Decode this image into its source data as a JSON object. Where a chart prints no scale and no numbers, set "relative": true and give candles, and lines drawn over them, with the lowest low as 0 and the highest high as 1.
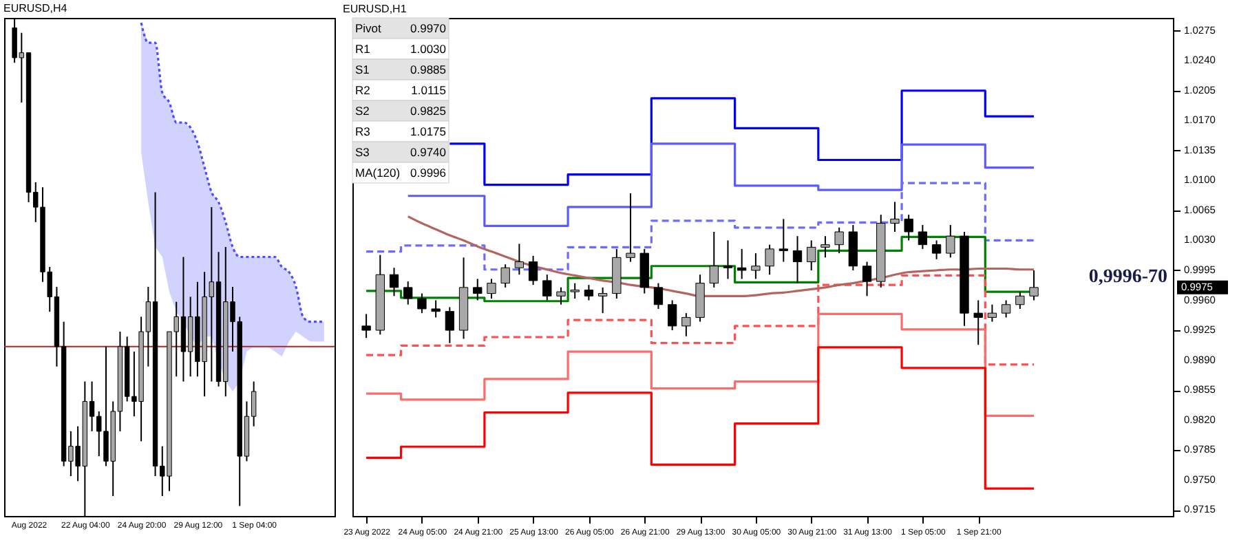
{
  "chart_data": [
    {
      "type": "candlestick",
      "title": "EURUSD,H4",
      "relative": true,
      "categories": [
        null,
        null,
        "Aug 2022",
        null,
        null,
        null,
        null,
        null,
        null,
        null,
        "22 Aug 04:00",
        null,
        null,
        null,
        null,
        null,
        null,
        null,
        "24 Aug 20:00",
        null,
        null,
        null,
        null,
        null,
        null,
        null,
        "29 Aug 12:00",
        null,
        null,
        null,
        null,
        null,
        null,
        null,
        "1 Sep 04:00",
        null,
        null,
        null,
        null,
        null,
        null,
        null,
        null,
        null,
        null
      ],
      "ohlc": [
        [
          0.98,
          1.0,
          0.91,
          0.92
        ],
        [
          0.92,
          0.97,
          0.83,
          0.93
        ],
        [
          0.93,
          0.93,
          0.63,
          0.65
        ],
        [
          0.65,
          0.67,
          0.59,
          0.62
        ],
        [
          0.62,
          0.66,
          0.47,
          0.49
        ],
        [
          0.49,
          0.5,
          0.41,
          0.44
        ],
        [
          0.44,
          0.46,
          0.3,
          0.34
        ],
        [
          0.34,
          0.39,
          0.1,
          0.11
        ],
        [
          0.11,
          0.17,
          0.08,
          0.14
        ],
        [
          0.14,
          0.18,
          0.07,
          0.1
        ],
        [
          0.1,
          0.27,
          0.0,
          0.23
        ],
        [
          0.23,
          0.27,
          0.17,
          0.2
        ],
        [
          0.2,
          0.21,
          0.12,
          0.17
        ],
        [
          0.17,
          0.34,
          0.1,
          0.11
        ],
        [
          0.11,
          0.23,
          0.04,
          0.21
        ],
        [
          0.21,
          0.37,
          0.17,
          0.34
        ],
        [
          0.34,
          0.36,
          0.23,
          0.24
        ],
        [
          0.24,
          0.33,
          0.2,
          0.23
        ],
        [
          0.23,
          0.4,
          0.15,
          0.37
        ],
        [
          0.37,
          0.46,
          0.3,
          0.43
        ],
        [
          0.43,
          0.65,
          0.08,
          0.1
        ],
        [
          0.1,
          0.14,
          0.04,
          0.08
        ],
        [
          0.08,
          0.37,
          0.05,
          0.37
        ],
        [
          0.37,
          0.43,
          0.28,
          0.4
        ],
        [
          0.4,
          0.52,
          0.27,
          0.33
        ],
        [
          0.33,
          0.44,
          0.28,
          0.4
        ],
        [
          0.4,
          0.47,
          0.28,
          0.31
        ],
        [
          0.31,
          0.49,
          0.24,
          0.44
        ],
        [
          0.44,
          0.62,
          0.27,
          0.47
        ],
        [
          0.47,
          0.53,
          0.26,
          0.27
        ],
        [
          0.27,
          0.54,
          0.24,
          0.43
        ],
        [
          0.43,
          0.46,
          0.33,
          0.39
        ],
        [
          0.39,
          0.4,
          0.02,
          0.12
        ],
        [
          0.12,
          0.23,
          0.11,
          0.2
        ],
        [
          0.2,
          0.27,
          0.18,
          0.25
        ],
        null,
        null,
        null,
        null,
        null,
        null,
        null,
        null,
        null,
        null
      ],
      "series": [
        {
          "type": "line",
          "color": "#4d4dff",
          "line_style": "dotted",
          "values": [
            null,
            null,
            null,
            null,
            null,
            null,
            null,
            null,
            null,
            null,
            null,
            null,
            null,
            null,
            null,
            null,
            null,
            null,
            0.99,
            0.95,
            0.95,
            0.85,
            0.83,
            0.79,
            0.79,
            0.78,
            0.75,
            0.7,
            0.65,
            0.63,
            0.59,
            0.54,
            0.52,
            0.52,
            0.52,
            0.52,
            0.52,
            0.52,
            0.5,
            0.49,
            0.46,
            0.4,
            0.39,
            0.39,
            0.39
          ],
          "lower": [
            null,
            null,
            null,
            null,
            null,
            null,
            null,
            null,
            null,
            null,
            null,
            null,
            null,
            null,
            null,
            null,
            null,
            null,
            0.73,
            0.63,
            0.54,
            0.52,
            0.45,
            0.41,
            0.39,
            0.36,
            0.34,
            0.36,
            0.36,
            0.31,
            0.27,
            0.25,
            0.27,
            0.33,
            0.34,
            0.34,
            0.34,
            0.33,
            0.32,
            0.35,
            0.37,
            0.36,
            0.35,
            0.35,
            0.35
          ],
          "upper": [
            null,
            null,
            null,
            null,
            null,
            null,
            null,
            null,
            null,
            null,
            null,
            null,
            null,
            null,
            null,
            null,
            null,
            null,
            0.99,
            0.95,
            0.95,
            0.85,
            0.83,
            0.79,
            0.79,
            0.78,
            0.75,
            0.7,
            0.65,
            0.63,
            0.59,
            0.54,
            0.52,
            0.52,
            0.52,
            0.52,
            0.52,
            0.52,
            0.5,
            0.49,
            0.46,
            0.4,
            0.39,
            0.39,
            0.39
          ]
        }
      ],
      "ref_lines": [
        {
          "axis": "y",
          "value": 0.34,
          "color": "#a52a2a"
        }
      ],
      "tick_labels": "x"
    },
    {
      "type": "candlestick",
      "title": "EURUSD,H1",
      "categories": [
        "23 Aug 2022",
        null,
        null,
        null,
        "24 Aug 05:00",
        null,
        null,
        null,
        "24 Aug 21:00",
        null,
        null,
        null,
        "25 Aug 13:00",
        null,
        null,
        null,
        "26 Aug 05:00",
        null,
        null,
        null,
        "26 Aug 21:00",
        null,
        null,
        null,
        "29 Aug 13:00",
        null,
        null,
        null,
        "30 Aug 05:00",
        null,
        null,
        null,
        "30 Aug 21:00",
        null,
        null,
        null,
        "31 Aug 13:00",
        null,
        null,
        null,
        "1 Sep 05:00",
        null,
        null,
        null,
        "1 Sep 21:00",
        null,
        null,
        null,
        null,
        null,
        null,
        null,
        null,
        null,
        null,
        null,
        null,
        null
      ],
      "ohlc": [
        [
          0.993,
          0.9944,
          0.9916,
          0.9925
        ],
        [
          0.9925,
          1.0013,
          0.992,
          0.999
        ],
        [
          0.999,
          0.9998,
          0.9965,
          0.9975
        ],
        [
          0.9975,
          0.9982,
          0.9955,
          0.9962
        ],
        [
          0.9962,
          0.9968,
          0.9945,
          0.995
        ],
        [
          0.995,
          0.996,
          0.994,
          0.9947
        ],
        [
          0.9947,
          0.9952,
          0.991,
          0.9925
        ],
        [
          0.9925,
          1.001,
          0.9915,
          0.9975
        ],
        [
          0.9975,
          0.9985,
          0.996,
          0.9968
        ],
        [
          0.9968,
          0.9985,
          0.9962,
          0.998
        ],
        [
          0.998,
          1.0002,
          0.9975,
          0.9998
        ],
        [
          0.9998,
          1.0026,
          0.999,
          1.0005
        ],
        [
          1.0005,
          1.0012,
          0.9978,
          0.9983
        ],
        [
          0.9983,
          0.999,
          0.996,
          0.9965
        ],
        [
          0.9965,
          0.9975,
          0.9955,
          0.997
        ],
        [
          0.997,
          0.998,
          0.9962,
          0.9972
        ],
        [
          0.9972,
          0.9978,
          0.996,
          0.9965
        ],
        [
          0.9965,
          0.9975,
          0.9945,
          0.9968
        ],
        [
          0.9968,
          1.002,
          0.9962,
          1.001
        ],
        [
          1.001,
          1.0085,
          1.0005,
          1.0015
        ],
        [
          1.0015,
          1.002,
          0.9968,
          0.9975
        ],
        [
          0.9975,
          0.998,
          0.995,
          0.9955
        ],
        [
          0.9955,
          0.996,
          0.9925,
          0.993
        ],
        [
          0.993,
          0.9945,
          0.9918,
          0.994
        ],
        [
          0.994,
          0.999,
          0.9935,
          0.998
        ],
        [
          0.998,
          1.004,
          0.9975,
          1.0
        ],
        [
          1.0,
          1.003,
          0.9985,
          0.9998
        ],
        [
          0.9998,
          1.002,
          0.9985,
          0.9995
        ],
        [
          0.9995,
          1.0015,
          0.9985,
          1.0
        ],
        [
          1.0,
          1.0025,
          0.999,
          1.002
        ],
        [
          1.002,
          1.0055,
          1.0005,
          1.0018
        ],
        [
          1.0018,
          1.0035,
          0.998,
          1.0005
        ],
        [
          1.0005,
          1.003,
          0.9995,
          1.0022
        ],
        [
          1.0022,
          1.0035,
          1.001,
          1.0025
        ],
        [
          1.0025,
          1.0045,
          1.0015,
          1.004
        ],
        [
          1.004,
          1.0048,
          0.9995,
          1.0
        ],
        [
          1.0,
          1.0005,
          0.9965,
          0.9982
        ],
        [
          0.9982,
          1.006,
          0.9975,
          1.005
        ],
        [
          1.005,
          1.0075,
          1.004,
          1.0055
        ],
        [
          1.0055,
          1.006,
          1.003,
          1.004
        ],
        [
          1.004,
          1.0048,
          1.002,
          1.0025
        ],
        [
          1.0025,
          1.003,
          1.0008,
          1.0015
        ],
        [
          1.0015,
          1.0048,
          1.001,
          1.0035
        ],
        [
          1.0035,
          1.004,
          0.993,
          0.9945
        ],
        [
          0.9945,
          0.996,
          0.9908,
          0.994
        ],
        [
          0.994,
          0.9955,
          0.9935,
          0.9945
        ],
        [
          0.9945,
          0.996,
          0.994,
          0.9955
        ],
        [
          0.9955,
          0.997,
          0.995,
          0.9965
        ],
        [
          0.9965,
          0.9995,
          0.996,
          0.9975
        ],
        null,
        null,
        null,
        null,
        null,
        null,
        null,
        null,
        null
      ],
      "series": [
        {
          "type": "step",
          "color": "#0000ff",
          "values": [
            null,
            null,
            null,
            null,
            null,
            null,
            1.0143,
            1.0143,
            1.0143,
            1.0095,
            1.0095,
            1.0095,
            1.0095,
            1.0095,
            1.0095,
            1.0107,
            1.0107,
            1.0107,
            1.0107,
            1.0107,
            1.0107,
            1.0196,
            1.0196,
            1.0196,
            1.0196,
            1.0196,
            1.0196,
            1.0161,
            1.0161,
            1.0161,
            1.0161,
            1.0161,
            1.0161,
            1.0124,
            1.0124,
            1.0124,
            1.0124,
            1.0124,
            1.0124,
            1.0205,
            1.0205,
            1.0205,
            1.0205,
            1.0205,
            1.0205,
            1.0175,
            1.0175,
            1.0175,
            1.0175,
            null,
            null,
            null,
            null,
            null,
            null,
            null,
            null,
            null
          ]
        },
        {
          "type": "step",
          "color": "#5a5aff",
          "values": [
            null,
            null,
            null,
            1.0082,
            1.0082,
            1.0082,
            1.0082,
            1.0082,
            1.0082,
            1.0047,
            1.0047,
            1.0047,
            1.0047,
            1.0047,
            1.0047,
            1.0069,
            1.0069,
            1.0069,
            1.0069,
            1.0069,
            1.0069,
            1.0143,
            1.0143,
            1.0143,
            1.0143,
            1.0143,
            1.0143,
            1.0094,
            1.0094,
            1.0094,
            1.0094,
            1.0094,
            1.0094,
            1.0089,
            1.0089,
            1.0089,
            1.0089,
            1.0089,
            1.0089,
            1.0142,
            1.0142,
            1.0142,
            1.0142,
            1.0142,
            1.0142,
            1.0115,
            1.0115,
            1.0115,
            1.0115,
            null,
            null,
            null,
            null,
            null,
            null,
            null,
            null,
            null
          ]
        },
        {
          "type": "step",
          "color": "#6b6bff",
          "line_style": "dashed",
          "values": [
            1.0017,
            1.0017,
            1.0017,
            1.0024,
            1.0024,
            1.0024,
            1.0024,
            1.0024,
            1.0024,
            0.9996,
            0.9996,
            0.9996,
            0.9996,
            0.9996,
            0.9996,
            1.0022,
            1.0022,
            1.0022,
            1.0022,
            1.0022,
            1.0022,
            1.0053,
            1.0053,
            1.0053,
            1.0053,
            1.0053,
            1.0053,
            1.0045,
            1.0045,
            1.0045,
            1.0045,
            1.0045,
            1.0045,
            1.0051,
            1.0051,
            1.0051,
            1.0051,
            1.0051,
            1.0051,
            1.0097,
            1.0097,
            1.0097,
            1.0097,
            1.0097,
            1.0097,
            1.003,
            1.003,
            1.003,
            1.003,
            null,
            null,
            null,
            null,
            null,
            null,
            null,
            null,
            null
          ]
        },
        {
          "type": "step",
          "color": "#008000",
          "values": [
            0.9971,
            0.9971,
            0.9971,
            0.9963,
            0.9963,
            0.9963,
            0.9963,
            0.9963,
            0.9963,
            0.9959,
            0.9959,
            0.9959,
            0.9959,
            0.9959,
            0.9959,
            0.9986,
            0.9986,
            0.9986,
            0.9986,
            0.9986,
            0.9986,
            1.0,
            1.0,
            1.0,
            1.0,
            1.0,
            1.0,
            0.9981,
            0.9981,
            0.9981,
            0.9981,
            0.9981,
            0.9981,
            1.0018,
            1.0018,
            1.0018,
            1.0018,
            1.0018,
            1.0018,
            1.0034,
            1.0034,
            1.0034,
            1.0034,
            1.0034,
            1.0034,
            0.997,
            0.997,
            0.997,
            0.997,
            null,
            null,
            null,
            null,
            null,
            null,
            null,
            null,
            null
          ]
        },
        {
          "type": "step",
          "color": "#ff5050",
          "line_style": "dashed",
          "values": [
            0.9896,
            0.9896,
            0.9896,
            0.9907,
            0.9907,
            0.9907,
            0.9907,
            0.9907,
            0.9907,
            0.9917,
            0.9917,
            0.9917,
            0.9917,
            0.9917,
            0.9917,
            0.9937,
            0.9937,
            0.9937,
            0.9937,
            0.9937,
            0.9937,
            0.991,
            0.991,
            0.991,
            0.991,
            0.991,
            0.991,
            0.993,
            0.993,
            0.993,
            0.993,
            0.993,
            0.993,
            0.9978,
            0.9978,
            0.9978,
            0.9978,
            0.9978,
            0.9978,
            0.9989,
            0.9989,
            0.9989,
            0.9989,
            0.9989,
            0.9989,
            0.9885,
            0.9885,
            0.9885,
            0.9885,
            null,
            null,
            null,
            null,
            null,
            null,
            null,
            null,
            null
          ]
        },
        {
          "type": "step",
          "color": "#ff6a6a",
          "values": [
            0.9851,
            0.9851,
            0.9851,
            0.9844,
            0.9844,
            0.9844,
            0.9844,
            0.9844,
            0.9844,
            0.9868,
            0.9868,
            0.9868,
            0.9868,
            0.9868,
            0.9868,
            0.99,
            0.99,
            0.99,
            0.99,
            0.99,
            0.99,
            0.9857,
            0.9857,
            0.9857,
            0.9857,
            0.9857,
            0.9857,
            0.9865,
            0.9865,
            0.9865,
            0.9865,
            0.9865,
            0.9865,
            0.9944,
            0.9944,
            0.9944,
            0.9944,
            0.9944,
            0.9944,
            0.9926,
            0.9926,
            0.9926,
            0.9926,
            0.9926,
            0.9926,
            0.9825,
            0.9825,
            0.9825,
            0.9825,
            null,
            null,
            null,
            null,
            null,
            null,
            null,
            null,
            null
          ]
        },
        {
          "type": "step",
          "color": "#ff0000",
          "values": [
            0.9776,
            0.9776,
            0.9776,
            0.9789,
            0.9789,
            0.9789,
            0.9789,
            0.9789,
            0.9789,
            0.9829,
            0.9829,
            0.9829,
            0.9829,
            0.9829,
            0.9829,
            0.9852,
            0.9852,
            0.9852,
            0.9852,
            0.9852,
            0.9852,
            0.9768,
            0.9768,
            0.9768,
            0.9768,
            0.9768,
            0.9768,
            0.9816,
            0.9816,
            0.9816,
            0.9816,
            0.9816,
            0.9816,
            0.9905,
            0.9905,
            0.9905,
            0.9905,
            0.9905,
            0.9905,
            0.9881,
            0.9881,
            0.9881,
            0.9881,
            0.9881,
            0.9881,
            0.974,
            0.974,
            0.974,
            0.974,
            null,
            null,
            null,
            null,
            null,
            null,
            null,
            null,
            null
          ]
        },
        {
          "type": "line",
          "color": "#b5655f",
          "values": [
            null,
            null,
            null,
            1.0058,
            1.005,
            1.0043,
            1.0036,
            1.003,
            1.0023,
            1.0017,
            1.0011,
            1.0005,
            1.0,
            0.9996,
            0.9992,
            0.9989,
            0.9986,
            0.9983,
            0.9981,
            0.9978,
            0.9976,
            0.9974,
            0.9971,
            0.9968,
            0.9965,
            0.9965,
            0.9965,
            0.9965,
            0.9966,
            0.9968,
            0.9969,
            0.9971,
            0.9973,
            0.9975,
            0.9978,
            0.998,
            0.9983,
            0.9986,
            0.999,
            0.9993,
            0.9994,
            0.9995,
            0.9996,
            0.9996,
            0.9997,
            0.9997,
            0.9997,
            0.9996,
            0.9996,
            null,
            null,
            null,
            null,
            null,
            null,
            null,
            null,
            null
          ]
        }
      ],
      "ylim": [
        0.9708,
        1.029
      ],
      "yticks": [
        0.9715,
        {
          "value": 0.975,
          "label": "0.9750"
        },
        0.9785,
        {
          "value": 0.982,
          "label": "0.9820"
        },
        0.9855,
        {
          "value": 0.989,
          "label": "0.9890"
        },
        0.9925,
        {
          "value": 0.996,
          "label": "0.9960"
        },
        0.9995,
        {
          "value": 1.003,
          "label": "1.0030"
        },
        1.0065,
        {
          "value": 1.01,
          "label": "1.0100"
        },
        1.0135,
        {
          "value": 1.017,
          "label": "1.0170"
        },
        1.0205,
        {
          "value": 1.024,
          "label": "1.0240"
        },
        1.0275
      ],
      "annotations": [
        "0,9996-70",
        "0.9975",
        "Pivot",
        "0.9970",
        "R1",
        "1.0030",
        "S1",
        "0.9885",
        "R2",
        "1.0115",
        "S2",
        "0.9825",
        "R3",
        "1.0175",
        "S3",
        "0.9740",
        "MA(120)",
        "0.9996"
      ]
    }
  ]
}
